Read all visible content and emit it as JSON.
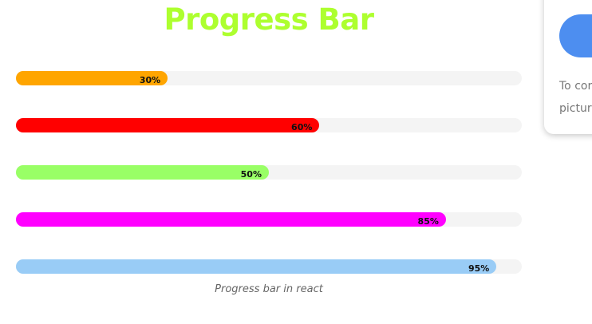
{
  "page": {
    "title": "Progress Bar",
    "title_color": "#adff2f",
    "caption": "Progress bar in react"
  },
  "progress_bars": [
    {
      "label": "30%",
      "value": 30,
      "color": "#ffa500"
    },
    {
      "label": "60%",
      "value": 60,
      "color": "#ff0000"
    },
    {
      "label": "50%",
      "value": 50,
      "color": "#99ff66"
    },
    {
      "label": "85%",
      "value": 85,
      "color": "#ff00ff"
    },
    {
      "label": "95%",
      "value": 95,
      "color": "#99ccf6"
    }
  ],
  "side_card": {
    "button_color": "#4d8ef0",
    "text_line1": "To cor",
    "text_line2": "picture"
  }
}
